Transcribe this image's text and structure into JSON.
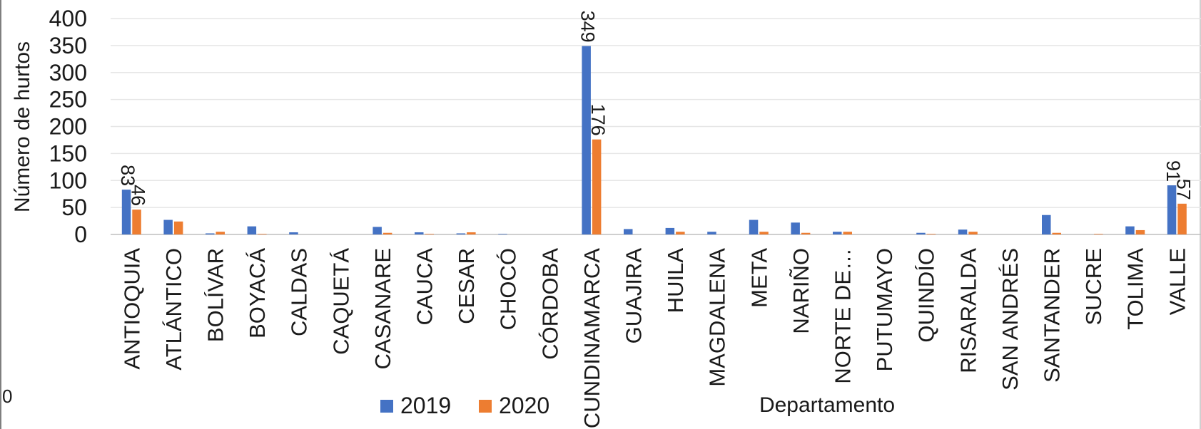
{
  "chart_data": {
    "type": "bar",
    "title": "",
    "xlabel": "Departamento",
    "ylabel": "Número de hurtos",
    "ylim": [
      0,
      400
    ],
    "yticks": [
      "0",
      "50",
      "100",
      "150",
      "200",
      "250",
      "300",
      "350",
      "400"
    ],
    "grid": true,
    "legend_position": "bottom",
    "stray_label": "0",
    "categories": [
      "ANTIOQUIA",
      "ATLÁNTICO",
      "BOLÍVAR",
      "BOYACÁ",
      "CALDAS",
      "CAQUETÁ",
      "CASANARE",
      "CAUCA",
      "CESAR",
      "CHOCÓ",
      "CÓRDOBA",
      "CUNDINAMARCA",
      "GUAJIRA",
      "HUILA",
      "MAGDALENA",
      "META",
      "NARIÑO",
      "NORTE DE…",
      "PUTUMAYO",
      "QUINDÍO",
      "RISARALDA",
      "SAN ANDRÉS",
      "SANTANDER",
      "SUCRE",
      "TOLIMA",
      "VALLE"
    ],
    "series": [
      {
        "name": "2019",
        "color": "#4472C4",
        "values": [
          83,
          27,
          2,
          15,
          4,
          0,
          14,
          4,
          2,
          1,
          0,
          349,
          10,
          12,
          5,
          27,
          22,
          5,
          0,
          3,
          9,
          0,
          36,
          0,
          15,
          91
        ],
        "labels": [
          "83",
          "",
          "",
          "",
          "",
          "",
          "",
          "",
          "",
          "",
          "",
          "349",
          "",
          "",
          "",
          "",
          "",
          "",
          "",
          "",
          "",
          "",
          "",
          "",
          "",
          "91"
        ]
      },
      {
        "name": "2020",
        "color": "#ED7D31",
        "values": [
          46,
          24,
          5,
          1,
          0,
          0,
          3,
          1,
          4,
          0,
          0,
          176,
          0,
          5,
          0,
          5,
          3,
          5,
          0,
          1,
          5,
          0,
          3,
          1,
          8,
          57
        ],
        "labels": [
          "46",
          "",
          "",
          "",
          "",
          "",
          "",
          "",
          "",
          "",
          "",
          "176",
          "",
          "",
          "",
          "",
          "",
          "",
          "",
          "",
          "",
          "",
          "",
          "",
          "",
          "57"
        ]
      }
    ]
  }
}
